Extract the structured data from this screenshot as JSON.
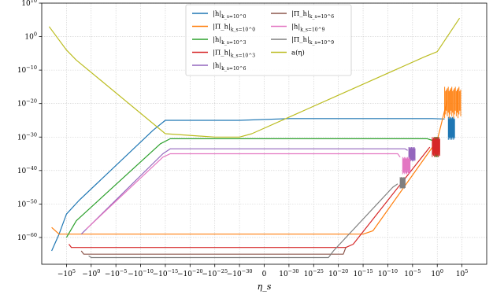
{
  "chart_data": {
    "type": "line",
    "title": "",
    "xlabel": "η_s",
    "ylabel": "",
    "y_scale": "log",
    "ylim_exp": [
      -68,
      10
    ],
    "grid": true,
    "legend_placement": "top-center",
    "legend_columns": 2,
    "x_ticks": [
      {
        "label": "−10",
        "exp": "5"
      },
      {
        "label": "−10",
        "exp": "0"
      },
      {
        "label": "−10",
        "exp": "−5"
      },
      {
        "label": "−10",
        "exp": "−10"
      },
      {
        "label": "−10",
        "exp": "−15"
      },
      {
        "label": "−10",
        "exp": "−20"
      },
      {
        "label": "−10",
        "exp": "−25"
      },
      {
        "label": "−10",
        "exp": "−30"
      },
      {
        "label": "0",
        "exp": ""
      },
      {
        "label": "10",
        "exp": "−30"
      },
      {
        "label": "10",
        "exp": "−25"
      },
      {
        "label": "10",
        "exp": "−20"
      },
      {
        "label": "10",
        "exp": "−15"
      },
      {
        "label": "10",
        "exp": "−10"
      },
      {
        "label": "10",
        "exp": "−5"
      },
      {
        "label": "10",
        "exp": "0"
      },
      {
        "label": "10",
        "exp": "5"
      }
    ],
    "y_ticks": [
      {
        "label": "10",
        "exp": "10",
        "value": 10
      },
      {
        "label": "10",
        "exp": "0",
        "value": 0
      },
      {
        "label": "10",
        "exp": "−10",
        "value": -10
      },
      {
        "label": "10",
        "exp": "−20",
        "value": -20
      },
      {
        "label": "10",
        "exp": "−30",
        "value": -30
      },
      {
        "label": "10",
        "exp": "−40",
        "value": -40
      },
      {
        "label": "10",
        "exp": "−50",
        "value": -50
      },
      {
        "label": "10",
        "exp": "−60",
        "value": -60
      }
    ],
    "series": [
      {
        "name": "|h|",
        "sub": "k_s=10^0",
        "color": "#1f77b4",
        "points": [
          [
            -0.6,
            -64
          ],
          [
            -0.3,
            -59
          ],
          [
            0,
            -53
          ],
          [
            0.5,
            -49
          ],
          [
            3.5,
            -28
          ],
          [
            4,
            -25
          ],
          [
            5.5,
            -25
          ],
          [
            7,
            -25
          ],
          [
            9,
            -24.5
          ],
          [
            14.8,
            -24.5
          ],
          [
            15.3,
            -24.6
          ]
        ],
        "noise": {
          "x0": 15.45,
          "x1": 15.7,
          "ylo": -32,
          "yhi": -24
        }
      },
      {
        "name": "|Π_h|",
        "sub": "k_s=10^0",
        "color": "#ff7f0e",
        "points": [
          [
            -0.6,
            -57
          ],
          [
            -0.3,
            -59
          ],
          [
            0,
            -59
          ],
          [
            4,
            -59
          ],
          [
            9,
            -59
          ],
          [
            12,
            -59
          ],
          [
            12.4,
            -58
          ],
          [
            15,
            -31
          ],
          [
            15.4,
            -19
          ]
        ],
        "noise": {
          "x0": 15.3,
          "x1": 15.95,
          "ylo": -26,
          "yhi": -15
        }
      },
      {
        "name": "|h|",
        "sub": "k_s=10^3",
        "color": "#2ca02c",
        "points": [
          [
            0,
            -60
          ],
          [
            0.4,
            -55
          ],
          [
            3.8,
            -32
          ],
          [
            4.2,
            -30.5
          ],
          [
            6,
            -30.5
          ],
          [
            9,
            -30.5
          ],
          [
            12,
            -30.5
          ],
          [
            14.6,
            -30.5
          ],
          [
            14.8,
            -31
          ]
        ],
        "noise": {
          "x0": 14.9,
          "x1": 15.05,
          "ylo": -37,
          "yhi": -30
        }
      },
      {
        "name": "|Π_h|",
        "sub": "k_s=10^3",
        "color": "#d62728",
        "points": [
          [
            0.1,
            -62
          ],
          [
            0.2,
            -63
          ],
          [
            4,
            -63
          ],
          [
            8,
            -63
          ],
          [
            11.3,
            -63
          ],
          [
            11.6,
            -62
          ],
          [
            14.7,
            -33
          ]
        ],
        "noise": {
          "x0": 14.8,
          "x1": 15.1,
          "ylo": -37,
          "yhi": -30
        }
      },
      {
        "name": "|h|",
        "sub": "k_s=10^6",
        "color": "#9467bd",
        "points": [
          [
            0.6,
            -59
          ],
          [
            3.9,
            -35
          ],
          [
            4.2,
            -33.5
          ],
          [
            6,
            -33.5
          ],
          [
            9,
            -33.5
          ],
          [
            12,
            -33.5
          ],
          [
            13.7,
            -33.5
          ],
          [
            13.8,
            -34
          ]
        ],
        "noise": {
          "x0": 13.85,
          "x1": 14.1,
          "ylo": -38,
          "yhi": -33
        }
      },
      {
        "name": "|Π_h|",
        "sub": "k_s=10^6",
        "color": "#8c564b",
        "points": [
          [
            0.6,
            -64
          ],
          [
            0.7,
            -65
          ],
          [
            4,
            -65
          ],
          [
            8,
            -65
          ],
          [
            11.2,
            -65
          ],
          [
            11.3,
            -63
          ]
        ]
      },
      {
        "name": "|h|",
        "sub": "k_s=10^9",
        "color": "#e377c2",
        "points": [
          [
            0.8,
            -57.5
          ],
          [
            3.9,
            -36
          ],
          [
            4.2,
            -35
          ],
          [
            6,
            -35
          ],
          [
            9,
            -35
          ],
          [
            12,
            -35
          ],
          [
            13.4,
            -35
          ],
          [
            13.5,
            -36
          ]
        ],
        "noise": {
          "x0": 13.6,
          "x1": 13.9,
          "ylo": -42,
          "yhi": -36
        }
      },
      {
        "name": "|Π_h|",
        "sub": "k_s=10^9",
        "color": "#7f7f7f",
        "points": [
          [
            0.9,
            -65.5
          ],
          [
            1.0,
            -66
          ],
          [
            4,
            -66
          ],
          [
            8,
            -66
          ],
          [
            10.6,
            -66
          ],
          [
            10.8,
            -64
          ],
          [
            13.2,
            -45
          ],
          [
            13.4,
            -44
          ]
        ],
        "noise": {
          "x0": 13.5,
          "x1": 13.7,
          "ylo": -46,
          "yhi": -42
        }
      },
      {
        "name": "a(η)",
        "sub": "",
        "color": "#bcbd22",
        "points": [
          [
            -0.7,
            3
          ],
          [
            0,
            -4
          ],
          [
            0.4,
            -7
          ],
          [
            4,
            -29
          ],
          [
            6,
            -30
          ],
          [
            7,
            -30
          ],
          [
            7.5,
            -29
          ],
          [
            14.5,
            -6
          ],
          [
            15,
            -4.5
          ],
          [
            15.9,
            5.5
          ]
        ]
      }
    ]
  }
}
